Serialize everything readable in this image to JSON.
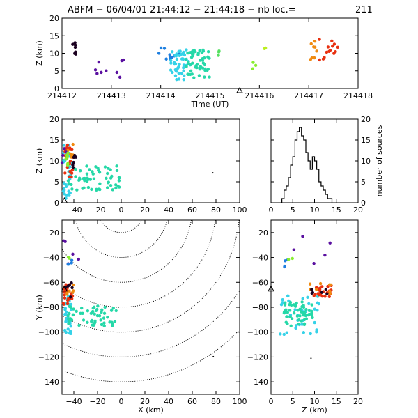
{
  "title": {
    "text": "ABFM − 06/04/01 21:44:12 − 21:44:18 − nb loc.=",
    "count": "211"
  },
  "chart_data": [
    {
      "id": "time_height",
      "type": "scatter",
      "xlabel": "Time (UT)",
      "ylabel": "Z (km)",
      "xlim": [
        214412,
        214418
      ],
      "ylim": [
        0,
        20
      ],
      "xticks": [
        "214412",
        "214413",
        "214414",
        "214415",
        "214416",
        "214417",
        "214418"
      ],
      "yticks": [
        "0",
        "5",
        "10",
        "15",
        "20"
      ],
      "marker": {
        "x": 214415.6,
        "y": 0
      },
      "clusters": [
        {
          "x": [
            214412.2,
            214412.3
          ],
          "y": [
            9,
            13
          ],
          "color": "#1a001f",
          "n": 8
        },
        {
          "x": [
            214412.6,
            214413.3
          ],
          "y": [
            2,
            9
          ],
          "color": "#5a10a0",
          "n": 9
        },
        {
          "x": [
            214413.7,
            214414.4
          ],
          "y": [
            8,
            12
          ],
          "color": "#1e7fe0",
          "n": 10
        },
        {
          "x": [
            214414.2,
            214414.6
          ],
          "y": [
            2.5,
            11
          ],
          "color": "#35d2e8",
          "n": 45
        },
        {
          "x": [
            214414.5,
            214415.0
          ],
          "y": [
            3,
            11
          ],
          "color": "#25d8a8",
          "n": 55
        },
        {
          "x": [
            214415.1,
            214415.2
          ],
          "y": [
            9,
            11
          ],
          "color": "#55e060",
          "n": 3
        },
        {
          "x": [
            214415.85,
            214415.95
          ],
          "y": [
            5,
            12
          ],
          "color": "#88ee30",
          "n": 3
        },
        {
          "x": [
            214416.1,
            214416.15
          ],
          "y": [
            11,
            12
          ],
          "color": "#bbee20",
          "n": 2
        },
        {
          "x": [
            214417.0,
            214417.2
          ],
          "y": [
            8,
            14
          ],
          "color": "#f08a10",
          "n": 8
        },
        {
          "x": [
            214417.2,
            214417.6
          ],
          "y": [
            7,
            14
          ],
          "color": "#e83010",
          "n": 14
        }
      ]
    },
    {
      "id": "x_height",
      "type": "scatter",
      "ylabel": "Z (km)",
      "xlim": [
        -50,
        100
      ],
      "ylim": [
        0,
        20
      ],
      "xticks": [
        "−40",
        "−20",
        "0",
        "20",
        "40",
        "60",
        "80",
        "100"
      ],
      "yticks": [
        "0",
        "5",
        "10",
        "15",
        "20"
      ],
      "marker": {
        "x": -48,
        "y": 0
      },
      "clusters": [
        {
          "x": [
            -49,
            -42
          ],
          "y": [
            1,
            14
          ],
          "color": "#35d2e8",
          "n": 35
        },
        {
          "x": [
            -45,
            0
          ],
          "y": [
            3,
            9
          ],
          "color": "#25d8a8",
          "n": 60
        },
        {
          "x": [
            -48,
            -40
          ],
          "y": [
            6,
            14
          ],
          "color": "#e83010",
          "n": 25
        },
        {
          "x": [
            -47,
            -40
          ],
          "y": [
            10,
            14
          ],
          "color": "#f08a10",
          "n": 8
        },
        {
          "x": [
            -42,
            -38
          ],
          "y": [
            8,
            12
          ],
          "color": "#1a001f",
          "n": 6
        },
        {
          "x": [
            -50,
            -46
          ],
          "y": [
            8,
            13
          ],
          "color": "#5a10a0",
          "n": 4
        },
        {
          "x": [
            -48,
            -45
          ],
          "y": [
            9,
            12
          ],
          "color": "#88ee30",
          "n": 6
        },
        {
          "x": [
            77,
            78
          ],
          "y": [
            7,
            7.5
          ],
          "color": "#000000",
          "n": 1
        }
      ]
    },
    {
      "id": "histogram",
      "type": "bar",
      "ylabel": "number of sources",
      "xlim": [
        0,
        20
      ],
      "ylim": [
        0,
        20
      ],
      "xticks": [
        "0",
        "5",
        "10",
        "15",
        "20"
      ],
      "yticks": [
        "0",
        "5",
        "10",
        "15",
        "20"
      ],
      "bin_width": 0.5,
      "bin_start": 2.5,
      "values": [
        1,
        3,
        4,
        6,
        9,
        11,
        15,
        17,
        18,
        16,
        15,
        12,
        10,
        8,
        11,
        10,
        8,
        5,
        4,
        3,
        2,
        1,
        1
      ]
    },
    {
      "id": "plan_view",
      "type": "scatter",
      "xlabel": "X (km)",
      "ylabel": "Y (km)",
      "xlim": [
        -50,
        100
      ],
      "ylim": [
        -150,
        -10
      ],
      "xticks": [
        "−40",
        "−20",
        "0",
        "20",
        "40",
        "60",
        "80",
        "100"
      ],
      "yticks": [
        "−140",
        "−120",
        "−100",
        "−80",
        "−60",
        "−40",
        "−20"
      ],
      "marker": {
        "x": -48,
        "y": -67
      },
      "range_rings_center": {
        "x": 0,
        "y": 0
      },
      "range_rings_radius": [
        20,
        40,
        60,
        80,
        100,
        120,
        140
      ],
      "clusters": [
        {
          "x": [
            -48,
            -42
          ],
          "y": [
            -103,
            -70
          ],
          "color": "#35d2e8",
          "n": 35
        },
        {
          "x": [
            -45,
            -3
          ],
          "y": [
            -95,
            -78
          ],
          "color": "#25d8a8",
          "n": 55
        },
        {
          "x": [
            -49,
            -41
          ],
          "y": [
            -78,
            -60
          ],
          "color": "#e83010",
          "n": 25
        },
        {
          "x": [
            -47,
            -40
          ],
          "y": [
            -70,
            -60
          ],
          "color": "#f08a10",
          "n": 6
        },
        {
          "x": [
            -49,
            -40
          ],
          "y": [
            -72,
            -60
          ],
          "color": "#1a001f",
          "n": 6
        },
        {
          "x": [
            -49,
            -35
          ],
          "y": [
            -50,
            -20
          ],
          "color": "#5a10a0",
          "n": 5
        },
        {
          "x": [
            -45,
            -40
          ],
          "y": [
            -46,
            -42
          ],
          "color": "#1e7fe0",
          "n": 4
        },
        {
          "x": [
            -45,
            -42
          ],
          "y": [
            -42,
            -38
          ],
          "color": "#88ee30",
          "n": 2
        },
        {
          "x": [
            77,
            78
          ],
          "y": [
            -120,
            -119
          ],
          "color": "#000000",
          "n": 1
        }
      ]
    },
    {
      "id": "height_plan",
      "type": "scatter",
      "xlabel": "Z (km)",
      "xlim": [
        0,
        20
      ],
      "ylim": [
        -150,
        -10
      ],
      "xticks": [
        "0",
        "5",
        "10",
        "15",
        "20"
      ],
      "yticks": [
        "−140",
        "−120",
        "−100",
        "−80",
        "−60",
        "−40",
        "−20"
      ],
      "marker": {
        "x": 0,
        "y": -67
      },
      "clusters": [
        {
          "x": [
            2,
            11
          ],
          "y": [
            -103,
            -70
          ],
          "color": "#35d2e8",
          "n": 35
        },
        {
          "x": [
            3,
            10
          ],
          "y": [
            -95,
            -75
          ],
          "color": "#25d8a8",
          "n": 55
        },
        {
          "x": [
            9,
            14
          ],
          "y": [
            -72,
            -62
          ],
          "color": "#e83010",
          "n": 25
        },
        {
          "x": [
            8,
            14
          ],
          "y": [
            -70,
            -60
          ],
          "color": "#f08a10",
          "n": 8
        },
        {
          "x": [
            9,
            13
          ],
          "y": [
            -72,
            -60
          ],
          "color": "#1a001f",
          "n": 6
        },
        {
          "x": [
            5,
            14
          ],
          "y": [
            -47,
            -22
          ],
          "color": "#5a10a0",
          "n": 5
        },
        {
          "x": [
            3,
            5
          ],
          "y": [
            -48,
            -40
          ],
          "color": "#1e7fe0",
          "n": 4
        },
        {
          "x": [
            4,
            5
          ],
          "y": [
            -44,
            -40
          ],
          "color": "#88ee30",
          "n": 2
        },
        {
          "x": [
            9,
            9.3
          ],
          "y": [
            -121,
            -120
          ],
          "color": "#000000",
          "n": 1
        }
      ]
    }
  ]
}
